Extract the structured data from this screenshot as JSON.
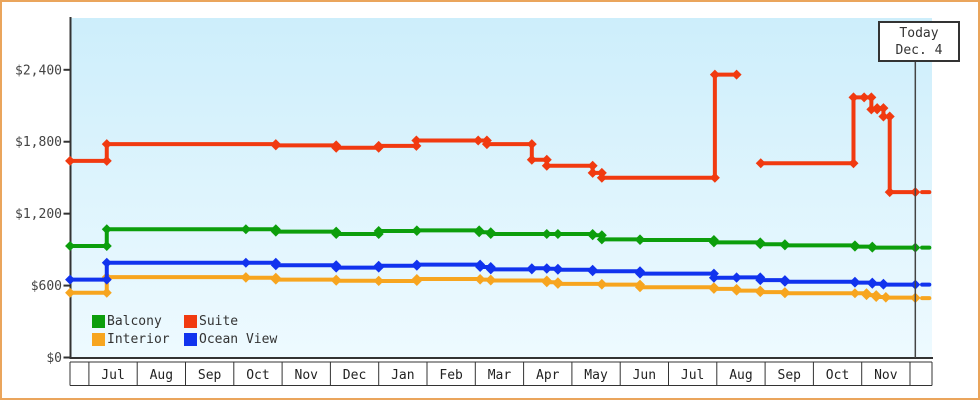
{
  "chart_data": {
    "type": "line",
    "subtype": "step-after-price-history",
    "title": "",
    "x_axis": {
      "unit": "months since first Jul cell",
      "months": [
        "Jul",
        "Aug",
        "Sep",
        "Oct",
        "Nov",
        "Dec",
        "Jan",
        "Feb",
        "Mar",
        "Apr",
        "May",
        "Jun",
        "Jul",
        "Aug",
        "Sep",
        "Oct",
        "Nov"
      ],
      "start_offset_months": -0.39,
      "end_offset_months": 17.45
    },
    "y_axis": {
      "tick_labels": [
        "$0",
        "$600",
        "$1,200",
        "$1,800",
        "$2,400"
      ],
      "tick_values": [
        0,
        600,
        1200,
        1800,
        2400
      ],
      "min": 0,
      "max": 2400
    },
    "today_marker": {
      "line1": "Today",
      "line2": "Dec. 4",
      "position_months": 17.11
    },
    "legend": [
      {
        "label": "Balcony",
        "color": "#0c9e0c"
      },
      {
        "label": "Suite",
        "color": "#f13a10"
      },
      {
        "label": "Interior",
        "color": "#f7a51f"
      },
      {
        "label": "Ocean View",
        "color": "#1133ee"
      }
    ],
    "series": [
      {
        "name": "Interior",
        "color": "#f7a51f",
        "segments": [
          {
            "markers": true,
            "points": [
              [
                -0.39,
                540
              ],
              [
                0.37,
                670
              ],
              [
                3.25,
                665
              ],
              [
                3.87,
                650
              ],
              [
                5.12,
                640
              ],
              [
                6.0,
                638
              ],
              [
                6.79,
                655
              ],
              [
                8.1,
                650
              ],
              [
                8.32,
                642
              ],
              [
                9.48,
                628
              ],
              [
                9.71,
                614
              ],
              [
                10.62,
                608
              ],
              [
                11.41,
                586
              ],
              [
                12.94,
                572
              ],
              [
                13.41,
                558
              ],
              [
                13.9,
                545
              ],
              [
                14.41,
                536
              ],
              [
                15.86,
                536
              ],
              [
                16.1,
                520
              ],
              [
                16.3,
                505
              ],
              [
                16.5,
                500
              ],
              [
                17.11,
                495
              ]
            ]
          },
          {
            "markers": false,
            "points": [
              [
                17.25,
                495
              ],
              [
                17.4,
                495
              ]
            ]
          }
        ]
      },
      {
        "name": "Ocean View",
        "color": "#1133ee",
        "segments": [
          {
            "markers": true,
            "points": [
              [
                -0.39,
                650
              ],
              [
                0.37,
                790
              ],
              [
                3.25,
                790
              ],
              [
                3.87,
                770
              ],
              [
                5.12,
                750
              ],
              [
                6.0,
                765
              ],
              [
                6.79,
                775
              ],
              [
                8.1,
                755
              ],
              [
                8.32,
                735
              ],
              [
                9.17,
                745
              ],
              [
                9.48,
                740
              ],
              [
                9.71,
                732
              ],
              [
                10.43,
                720
              ],
              [
                11.41,
                700
              ],
              [
                12.94,
                665
              ],
              [
                13.41,
                668
              ],
              [
                13.9,
                645
              ],
              [
                14.41,
                632
              ],
              [
                15.86,
                625
              ],
              [
                16.22,
                615
              ],
              [
                16.45,
                608
              ],
              [
                17.11,
                608
              ]
            ]
          },
          {
            "markers": false,
            "points": [
              [
                17.25,
                608
              ],
              [
                17.4,
                608
              ]
            ]
          }
        ]
      },
      {
        "name": "Balcony",
        "color": "#0c9e0c",
        "segments": [
          {
            "markers": true,
            "points": [
              [
                -0.39,
                930
              ],
              [
                0.37,
                1070
              ],
              [
                3.25,
                1070
              ],
              [
                3.87,
                1050
              ],
              [
                5.12,
                1030
              ],
              [
                6.0,
                1055
              ],
              [
                6.79,
                1060
              ],
              [
                8.08,
                1045
              ],
              [
                8.32,
                1030
              ],
              [
                9.48,
                1030
              ],
              [
                9.71,
                1030
              ],
              [
                10.43,
                1020
              ],
              [
                10.62,
                985
              ],
              [
                11.41,
                980
              ],
              [
                12.94,
                960
              ],
              [
                13.9,
                945
              ],
              [
                14.41,
                935
              ],
              [
                15.86,
                925
              ],
              [
                16.22,
                917
              ],
              [
                17.11,
                917
              ]
            ]
          },
          {
            "markers": false,
            "points": [
              [
                17.25,
                917
              ],
              [
                17.4,
                917
              ]
            ]
          }
        ]
      },
      {
        "name": "Suite",
        "color": "#f13a10",
        "segments": [
          {
            "markers": true,
            "points": [
              [
                -0.39,
                1640
              ],
              [
                0.37,
                1780
              ],
              [
                3.87,
                1770
              ],
              [
                5.12,
                1750
              ],
              [
                6.0,
                1765
              ],
              [
                6.78,
                1810
              ],
              [
                8.06,
                1810
              ],
              [
                8.24,
                1780
              ],
              [
                9.17,
                1650
              ],
              [
                9.48,
                1600
              ],
              [
                10.43,
                1540
              ],
              [
                10.62,
                1500
              ],
              [
                12.96,
                2360
              ],
              [
                13.41,
                2360
              ]
            ]
          },
          {
            "markers": true,
            "points": [
              [
                13.91,
                1620
              ],
              [
                15.83,
                2170
              ],
              [
                16.05,
                2170
              ],
              [
                16.2,
                2070
              ],
              [
                16.32,
                2080
              ],
              [
                16.45,
                2010
              ],
              [
                16.58,
                1380
              ],
              [
                17.11,
                1380
              ]
            ]
          },
          {
            "markers": false,
            "points": [
              [
                17.25,
                1380
              ],
              [
                17.4,
                1380
              ]
            ]
          }
        ]
      }
    ],
    "layout_hints": {
      "plot_background_top": "#cdeefb",
      "plot_background_bottom": "#eefaff",
      "axis_color": "#333333",
      "label_color": "#444444",
      "page_border_color": "#eaa55c",
      "legend_position": "bottom-left-inside",
      "gridlines": "none"
    }
  }
}
